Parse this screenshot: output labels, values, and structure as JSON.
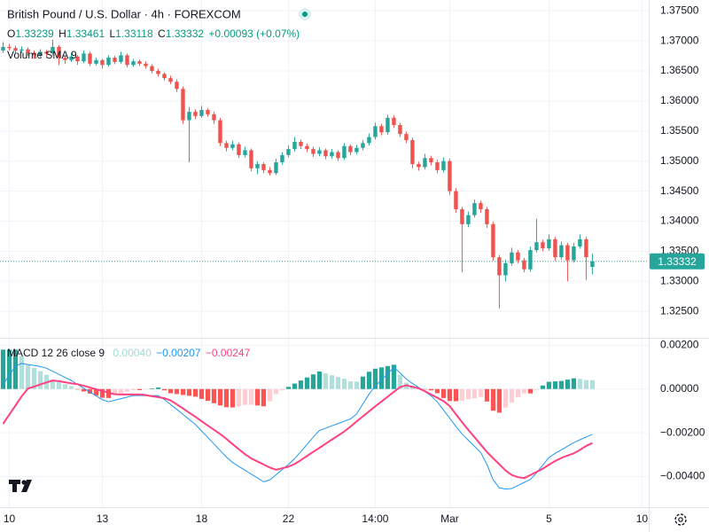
{
  "chart_data": [
    {
      "type": "candlestick",
      "title": "British Pound / U.S. Dollar · 4h · FOREXCOM",
      "ohlc_labels": [
        "O",
        "H",
        "L",
        "C"
      ],
      "change_label": "+0.00093 (+0.07%)",
      "indicator_label": "Volume SMA 9",
      "up_color": "#26a69a",
      "down_color": "#ef5350",
      "grid": true,
      "xlim": [
        -0.5,
        103.8
      ],
      "xticks": [
        {
          "value": 1,
          "label": "10"
        },
        {
          "value": 16,
          "label": "13"
        },
        {
          "value": 32,
          "label": "18"
        },
        {
          "value": 46,
          "label": "22"
        },
        {
          "value": 60,
          "label": "14:00"
        },
        {
          "value": 72,
          "label": "Mar"
        },
        {
          "value": 88,
          "label": "5"
        },
        {
          "value": 103,
          "label": "10"
        }
      ],
      "ylim": [
        1.3206,
        1.3768
      ],
      "yticks": [
        {
          "value": 1.375,
          "label": "1.37500"
        },
        {
          "value": 1.37,
          "label": "1.37000"
        },
        {
          "value": 1.365,
          "label": "1.36500"
        },
        {
          "value": 1.36,
          "label": "1.36000"
        },
        {
          "value": 1.355,
          "label": "1.35500"
        },
        {
          "value": 1.35,
          "label": "1.35000"
        },
        {
          "value": 1.345,
          "label": "1.34500"
        },
        {
          "value": 1.34,
          "label": "1.34000"
        },
        {
          "value": 1.335,
          "label": "1.33500"
        },
        {
          "value": 1.33,
          "label": "1.33000"
        },
        {
          "value": 1.325,
          "label": "1.32500"
        }
      ],
      "ohlc": [
        [
          1.3684,
          1.3698,
          1.368,
          1.369
        ],
        [
          1.369,
          1.3695,
          1.3684,
          1.3688
        ],
        [
          1.3688,
          1.3692,
          1.3679,
          1.3684
        ],
        [
          1.3684,
          1.3691,
          1.368,
          1.3686
        ],
        [
          1.3686,
          1.3689,
          1.3675,
          1.368
        ],
        [
          1.368,
          1.3684,
          1.367,
          1.3676
        ],
        [
          1.3676,
          1.3686,
          1.3673,
          1.3682
        ],
        [
          1.3682,
          1.3685,
          1.3674,
          1.3679
        ],
        [
          1.3679,
          1.3702,
          1.3676,
          1.369
        ],
        [
          1.369,
          1.3693,
          1.366,
          1.3672
        ],
        [
          1.3672,
          1.3676,
          1.3662,
          1.3668
        ],
        [
          1.3668,
          1.368,
          1.3665,
          1.3674
        ],
        [
          1.3674,
          1.3677,
          1.366,
          1.3666
        ],
        [
          1.3666,
          1.3684,
          1.3663,
          1.3679
        ],
        [
          1.3679,
          1.3682,
          1.3658,
          1.3662
        ],
        [
          1.3662,
          1.3672,
          1.3659,
          1.3668
        ],
        [
          1.3668,
          1.367,
          1.3654,
          1.366
        ],
        [
          1.366,
          1.3676,
          1.3657,
          1.3672
        ],
        [
          1.3672,
          1.3675,
          1.3661,
          1.3665
        ],
        [
          1.3665,
          1.3682,
          1.3662,
          1.3676
        ],
        [
          1.3676,
          1.3679,
          1.3656,
          1.366
        ],
        [
          1.366,
          1.367,
          1.3657,
          1.3666
        ],
        [
          1.3666,
          1.3669,
          1.3658,
          1.3662
        ],
        [
          1.3662,
          1.3666,
          1.3654,
          1.3658
        ],
        [
          1.3658,
          1.3661,
          1.3646,
          1.365
        ],
        [
          1.365,
          1.3654,
          1.3641,
          1.3645
        ],
        [
          1.3645,
          1.3648,
          1.3634,
          1.3638
        ],
        [
          1.3638,
          1.3642,
          1.3628,
          1.3632
        ],
        [
          1.3632,
          1.3636,
          1.3615,
          1.362
        ],
        [
          1.362,
          1.3624,
          1.3562,
          1.3568
        ],
        [
          1.3568,
          1.359,
          1.3498,
          1.3582
        ],
        [
          1.3582,
          1.3586,
          1.357,
          1.3575
        ],
        [
          1.3575,
          1.3592,
          1.3572,
          1.3585
        ],
        [
          1.3585,
          1.3588,
          1.3574,
          1.3578
        ],
        [
          1.3578,
          1.3582,
          1.3562,
          1.3568
        ],
        [
          1.3568,
          1.3572,
          1.3525,
          1.353
        ],
        [
          1.353,
          1.3534,
          1.3516,
          1.3522
        ],
        [
          1.3522,
          1.3534,
          1.3518,
          1.3528
        ],
        [
          1.3528,
          1.3531,
          1.3505,
          1.351
        ],
        [
          1.351,
          1.3524,
          1.3506,
          1.3518
        ],
        [
          1.3518,
          1.3521,
          1.3483,
          1.3488
        ],
        [
          1.3488,
          1.35,
          1.3478,
          1.3495
        ],
        [
          1.3495,
          1.3498,
          1.348,
          1.3485
        ],
        [
          1.3485,
          1.349,
          1.3476,
          1.348
        ],
        [
          1.348,
          1.3504,
          1.3477,
          1.3498
        ],
        [
          1.3498,
          1.3515,
          1.3494,
          1.351
        ],
        [
          1.351,
          1.3526,
          1.3506,
          1.352
        ],
        [
          1.352,
          1.354,
          1.3516,
          1.3532
        ],
        [
          1.3532,
          1.3536,
          1.352,
          1.3525
        ],
        [
          1.3525,
          1.3529,
          1.3515,
          1.352
        ],
        [
          1.352,
          1.3524,
          1.3507,
          1.3512
        ],
        [
          1.3512,
          1.3523,
          1.3508,
          1.3518
        ],
        [
          1.3518,
          1.3521,
          1.3503,
          1.3508
        ],
        [
          1.3508,
          1.352,
          1.3504,
          1.3515
        ],
        [
          1.3515,
          1.3518,
          1.35,
          1.3505
        ],
        [
          1.3505,
          1.353,
          1.3502,
          1.3525
        ],
        [
          1.3525,
          1.3528,
          1.351,
          1.3515
        ],
        [
          1.3515,
          1.3527,
          1.3511,
          1.3522
        ],
        [
          1.3522,
          1.3535,
          1.3518,
          1.353
        ],
        [
          1.353,
          1.3546,
          1.3526,
          1.354
        ],
        [
          1.354,
          1.3564,
          1.3536,
          1.3558
        ],
        [
          1.3558,
          1.3562,
          1.3543,
          1.3548
        ],
        [
          1.3548,
          1.3577,
          1.3544,
          1.3572
        ],
        [
          1.3572,
          1.3576,
          1.3555,
          1.356
        ],
        [
          1.356,
          1.3564,
          1.354,
          1.3545
        ],
        [
          1.3545,
          1.3549,
          1.353,
          1.3535
        ],
        [
          1.3535,
          1.3539,
          1.3488,
          1.3495
        ],
        [
          1.3495,
          1.3499,
          1.3484,
          1.349
        ],
        [
          1.349,
          1.3512,
          1.3486,
          1.3505
        ],
        [
          1.3505,
          1.3509,
          1.3493,
          1.3498
        ],
        [
          1.3498,
          1.3502,
          1.348,
          1.3485
        ],
        [
          1.3485,
          1.3506,
          1.3481,
          1.35
        ],
        [
          1.35,
          1.3504,
          1.3444,
          1.345
        ],
        [
          1.345,
          1.3455,
          1.3414,
          1.342
        ],
        [
          1.342,
          1.3424,
          1.3315,
          1.3395
        ],
        [
          1.3395,
          1.3416,
          1.339,
          1.341
        ],
        [
          1.341,
          1.3436,
          1.3406,
          1.343
        ],
        [
          1.343,
          1.3434,
          1.3414,
          1.342
        ],
        [
          1.342,
          1.3424,
          1.3389,
          1.3395
        ],
        [
          1.3395,
          1.3399,
          1.3334,
          1.334
        ],
        [
          1.334,
          1.3344,
          1.3255,
          1.331
        ],
        [
          1.331,
          1.3336,
          1.33,
          1.333
        ],
        [
          1.333,
          1.3356,
          1.3326,
          1.3348
        ],
        [
          1.3348,
          1.3352,
          1.333,
          1.3335
        ],
        [
          1.3335,
          1.3339,
          1.3315,
          1.332
        ],
        [
          1.332,
          1.3358,
          1.3316,
          1.3352
        ],
        [
          1.3352,
          1.3404,
          1.3348,
          1.3365
        ],
        [
          1.3365,
          1.3369,
          1.335,
          1.3355
        ],
        [
          1.3355,
          1.3378,
          1.3351,
          1.337
        ],
        [
          1.337,
          1.3374,
          1.3334,
          1.334
        ],
        [
          1.334,
          1.3366,
          1.3336,
          1.336
        ],
        [
          1.336,
          1.3364,
          1.33,
          1.3335
        ],
        [
          1.3335,
          1.3364,
          1.3331,
          1.3358
        ],
        [
          1.3358,
          1.3378,
          1.3354,
          1.337
        ],
        [
          1.337,
          1.3374,
          1.3302,
          1.334
        ],
        [
          1.33239,
          1.33461,
          1.33118,
          1.33332
        ]
      ]
    },
    {
      "type": "macd",
      "title": "MACD 12 26 close 9",
      "ylim": [
        -0.0054,
        0.0023
      ],
      "yticks": [
        {
          "value": 0.002,
          "label": "0.00200"
        },
        {
          "value": 0,
          "label": "0.00000"
        },
        {
          "value": -0.002,
          "label": "−0.00200"
        },
        {
          "value": -0.004,
          "label": "−0.00400"
        }
      ],
      "histogram": {
        "colors": [
          "#26a69a",
          "#b2dfdb",
          "#ff5252",
          "#ffcdd2"
        ],
        "last_label": "0.00040",
        "label_color": "#9fd9d1",
        "values": [
          0.0018,
          0.0018,
          0.0018,
          0.0015,
          0.0011,
          0.00097,
          0.00082,
          0.00065,
          0.00042,
          0.00031,
          0.00022,
          0.00013,
          -1e-05,
          -0.00011,
          -0.00021,
          -0.0003,
          -0.0004,
          -0.00041,
          -0.00027,
          -0.00019,
          -0.00012,
          -5e-05,
          -5e-05,
          -2e-05,
          3e-05,
          7e-05,
          -6e-05,
          -0.00019,
          -0.00023,
          -0.00027,
          -0.00031,
          -0.00035,
          -0.00045,
          -0.00054,
          -0.00065,
          -0.00075,
          -0.00083,
          -0.00084,
          -0.00079,
          -0.00073,
          -0.00072,
          -0.00075,
          -0.00079,
          -0.00056,
          -0.00023,
          -6e-05,
          0.0001,
          0.00025,
          0.00039,
          0.00053,
          0.00067,
          0.0008,
          0.00071,
          0.00063,
          0.00055,
          0.00047,
          0.00035,
          0.00034,
          0.00057,
          0.00079,
          0.00093,
          0.00099,
          0.00105,
          0.00111,
          0.00065,
          0.00029,
          0.00015,
          4e-05,
          -2e-05,
          -6e-05,
          -0.00019,
          -0.00041,
          -0.00055,
          -0.00056,
          -0.00054,
          -0.00047,
          -0.00042,
          -0.00036,
          -0.00057,
          -0.00099,
          -0.00108,
          -0.00085,
          -0.00062,
          -0.00038,
          -0.0002,
          -0.0002,
          -4e-05,
          0.00016,
          0.00033,
          0.00035,
          0.00037,
          0.00043,
          0.00049,
          0.00046,
          0.00041,
          0.0004
        ]
      },
      "macd": {
        "color": "#2196f3",
        "last_label": "−0.00207",
        "values": [
          0.00021,
          0.00063,
          0.00105,
          0.00117,
          0.00112,
          0.00108,
          0.00103,
          0.00095,
          0.00081,
          0.00067,
          0.00053,
          0.00039,
          0.00021,
          4e-05,
          -0.00014,
          -0.00031,
          -0.00049,
          -0.00058,
          -0.00051,
          -0.00044,
          -0.00037,
          -0.0003,
          -0.0003,
          -0.0003,
          -0.0003,
          -0.0003,
          -0.00048,
          -0.00071,
          -0.00093,
          -0.00116,
          -0.00139,
          -0.00162,
          -0.00192,
          -0.00221,
          -0.00251,
          -0.00281,
          -0.00311,
          -0.00336,
          -0.00354,
          -0.00371,
          -0.00389,
          -0.00406,
          -0.00424,
          -0.00415,
          -0.00392,
          -0.00368,
          -0.00345,
          -0.00318,
          -0.00286,
          -0.00253,
          -0.0022,
          -0.00189,
          -0.00179,
          -0.00168,
          -0.00158,
          -0.00147,
          -0.00137,
          -0.00114,
          -0.00068,
          -0.00023,
          0.00014,
          0.00042,
          0.0007,
          0.00098,
          0.00074,
          0.00046,
          0.00025,
          7e-05,
          -0.00012,
          -0.00031,
          -0.00059,
          -0.00096,
          -0.00133,
          -0.00171,
          -0.00206,
          -0.00234,
          -0.00262,
          -0.0029,
          -0.00345,
          -0.00415,
          -0.00452,
          -0.00457,
          -0.00455,
          -0.00441,
          -0.00427,
          -0.00413,
          -0.00383,
          -0.00348,
          -0.00313,
          -0.00294,
          -0.00278,
          -0.00261,
          -0.00245,
          -0.00232,
          -0.00219,
          -0.00207
        ]
      },
      "signal": {
        "color": "#ff4081",
        "last_label": "−0.00247",
        "values": [
          -0.00159,
          -0.00117,
          -0.00075,
          -0.00033,
          2e-05,
          0.00011,
          0.00021,
          0.0003,
          0.00039,
          0.00036,
          0.00031,
          0.00026,
          0.00022,
          0.00015,
          7e-05,
          -1e-05,
          -9e-05,
          -0.00017,
          -0.00024,
          -0.00025,
          -0.00025,
          -0.00025,
          -0.00025,
          -0.00028,
          -0.00033,
          -0.00037,
          -0.00042,
          -0.00052,
          -0.0007,
          -0.00089,
          -0.00108,
          -0.00127,
          -0.00147,
          -0.00167,
          -0.00186,
          -0.00206,
          -0.00228,
          -0.00252,
          -0.00275,
          -0.00298,
          -0.00317,
          -0.00331,
          -0.00345,
          -0.00359,
          -0.00369,
          -0.00362,
          -0.00355,
          -0.00343,
          -0.00325,
          -0.00306,
          -0.00287,
          -0.00269,
          -0.0025,
          -0.00231,
          -0.00213,
          -0.00194,
          -0.00172,
          -0.00148,
          -0.00125,
          -0.00102,
          -0.00079,
          -0.00057,
          -0.00035,
          -0.00013,
          9e-05,
          0.00017,
          0.0001,
          3e-05,
          -0.0001,
          -0.00025,
          -0.0004,
          -0.00055,
          -0.00078,
          -0.00115,
          -0.00152,
          -0.00187,
          -0.0022,
          -0.00254,
          -0.00288,
          -0.00316,
          -0.00344,
          -0.00372,
          -0.00393,
          -0.00403,
          -0.00407,
          -0.00393,
          -0.00379,
          -0.00364,
          -0.00346,
          -0.00329,
          -0.00315,
          -0.00304,
          -0.00294,
          -0.00278,
          -0.0026,
          -0.00247
        ]
      }
    }
  ]
}
